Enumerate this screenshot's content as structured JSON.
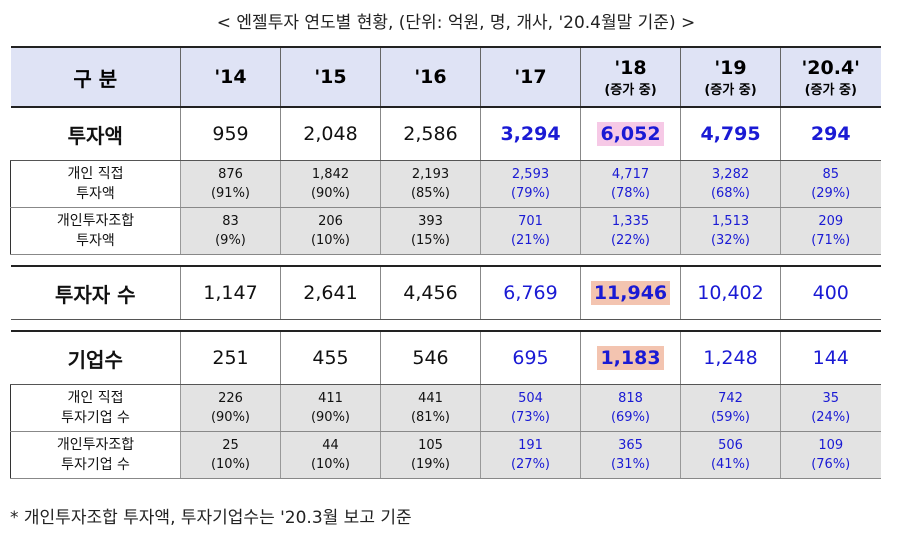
{
  "title": "< 엔젤투자 연도별 현황, (단위: 억원, 명, 개사, '20.4월말 기준) >",
  "header": {
    "label": "구 분",
    "years": [
      {
        "year": "'14",
        "sub": ""
      },
      {
        "year": "'15",
        "sub": ""
      },
      {
        "year": "'16",
        "sub": ""
      },
      {
        "year": "'17",
        "sub": ""
      },
      {
        "year": "'18",
        "sub": "(증가 중)"
      },
      {
        "year": "'19",
        "sub": "(증가 중)"
      },
      {
        "year": "'20.4'",
        "sub": "(증가 중)"
      }
    ]
  },
  "investment": {
    "label": "투자액",
    "values": [
      "959",
      "2,048",
      "2,586",
      "3,294",
      "6,052",
      "4,795",
      "294"
    ],
    "individual": {
      "label1": "개인 직접",
      "label2": "투자액",
      "values": [
        "876",
        "1,842",
        "2,193",
        "2,593",
        "4,717",
        "3,282",
        "85"
      ],
      "pcts": [
        "(91%)",
        "(90%)",
        "(85%)",
        "(79%)",
        "(78%)",
        "(68%)",
        "(29%)"
      ]
    },
    "union": {
      "label1": "개인투자조합",
      "label2": "투자액",
      "values": [
        "83",
        "206",
        "393",
        "701",
        "1,335",
        "1,513",
        "209"
      ],
      "pcts": [
        "(9%)",
        "(10%)",
        "(15%)",
        "(21%)",
        "(22%)",
        "(32%)",
        "(71%)"
      ]
    }
  },
  "investors": {
    "label": "투자자 수",
    "values": [
      "1,147",
      "2,641",
      "4,456",
      "6,769",
      "11,946",
      "10,402",
      "400"
    ]
  },
  "companies": {
    "label": "기업수",
    "values": [
      "251",
      "455",
      "546",
      "695",
      "1,183",
      "1,248",
      "144"
    ],
    "individual": {
      "label1": "개인 직접",
      "label2": "투자기업 수",
      "values": [
        "226",
        "411",
        "441",
        "504",
        "818",
        "742",
        "35"
      ],
      "pcts": [
        "(90%)",
        "(90%)",
        "(81%)",
        "(73%)",
        "(69%)",
        "(59%)",
        "(24%)"
      ]
    },
    "union": {
      "label1": "개인투자조합",
      "label2": "투자기업 수",
      "values": [
        "25",
        "44",
        "105",
        "191",
        "365",
        "506",
        "109"
      ],
      "pcts": [
        "(10%)",
        "(10%)",
        "(19%)",
        "(27%)",
        "(31%)",
        "(41%)",
        "(76%)"
      ]
    }
  },
  "footnote": "* 개인투자조합 투자액, 투자기업수는 '20.3월 보고 기준",
  "colors": {
    "header_bg": "#dfe3f5",
    "detail_bg": "#e3e3e3",
    "recent_text": "#1a1ad4",
    "highlight_pink": "#f6c9e6",
    "highlight_peach": "#f3c4b0"
  }
}
